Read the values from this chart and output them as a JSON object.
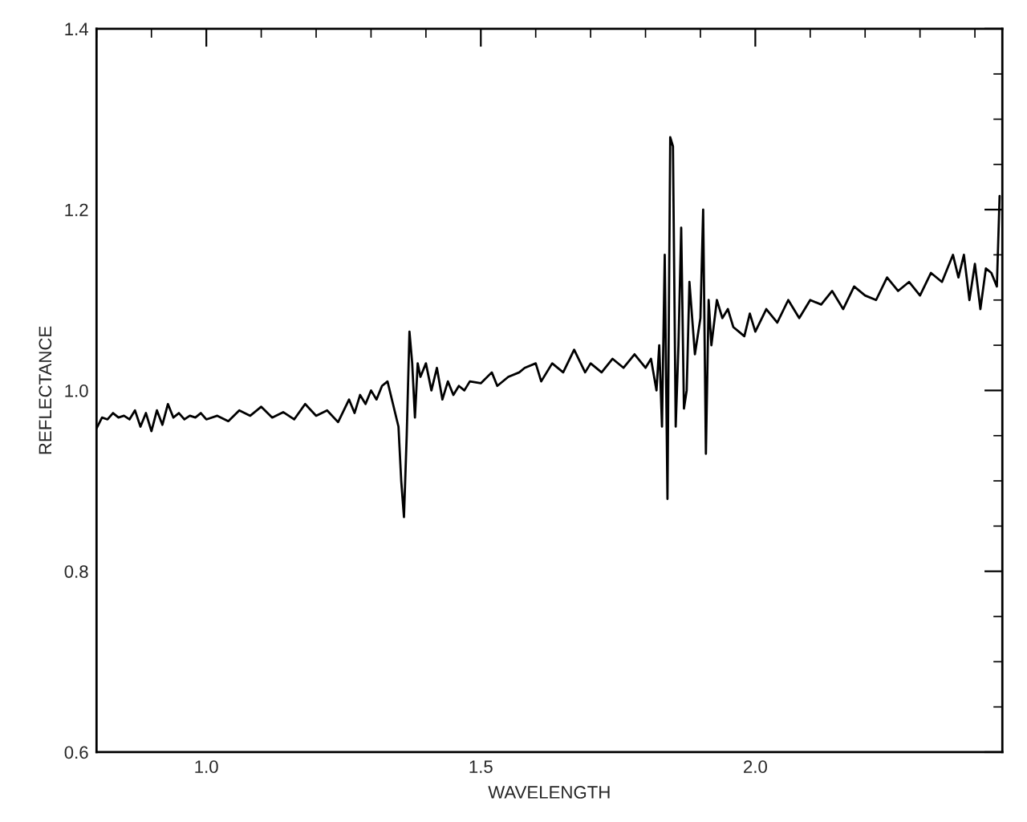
{
  "chart_data": {
    "type": "line",
    "xlabel": "WAVELENGTH",
    "ylabel": "REFLECTANCE",
    "xlim": [
      0.8,
      2.45
    ],
    "ylim": [
      0.6,
      1.4
    ],
    "xticks": [
      {
        "value": 1.0,
        "label": "1.0"
      },
      {
        "value": 1.5,
        "label": "1.5"
      },
      {
        "value": 2.0,
        "label": "2.0"
      }
    ],
    "yticks": [
      {
        "value": 0.6,
        "label": "0.6"
      },
      {
        "value": 0.8,
        "label": "0.8"
      },
      {
        "value": 1.0,
        "label": "1.0"
      },
      {
        "value": 1.2,
        "label": "1.2"
      },
      {
        "value": 1.4,
        "label": "1.4"
      }
    ],
    "grid": false,
    "marker": "none",
    "line_style": "solid",
    "series": [
      {
        "color": "#000000",
        "x": [
          0.8,
          0.81,
          0.82,
          0.83,
          0.84,
          0.85,
          0.86,
          0.87,
          0.88,
          0.89,
          0.9,
          0.91,
          0.92,
          0.93,
          0.94,
          0.95,
          0.96,
          0.97,
          0.98,
          0.99,
          1.0,
          1.02,
          1.04,
          1.06,
          1.08,
          1.1,
          1.12,
          1.14,
          1.16,
          1.18,
          1.2,
          1.22,
          1.24,
          1.26,
          1.27,
          1.28,
          1.29,
          1.3,
          1.31,
          1.32,
          1.33,
          1.34,
          1.35,
          1.355,
          1.36,
          1.365,
          1.37,
          1.375,
          1.38,
          1.385,
          1.39,
          1.4,
          1.41,
          1.42,
          1.43,
          1.44,
          1.45,
          1.46,
          1.47,
          1.48,
          1.5,
          1.52,
          1.53,
          1.55,
          1.57,
          1.58,
          1.6,
          1.61,
          1.63,
          1.65,
          1.67,
          1.69,
          1.7,
          1.72,
          1.74,
          1.76,
          1.78,
          1.8,
          1.81,
          1.82,
          1.825,
          1.83,
          1.835,
          1.84,
          1.845,
          1.85,
          1.855,
          1.86,
          1.865,
          1.87,
          1.875,
          1.88,
          1.89,
          1.9,
          1.905,
          1.91,
          1.915,
          1.92,
          1.93,
          1.94,
          1.95,
          1.96,
          1.97,
          1.98,
          1.99,
          2.0,
          2.02,
          2.04,
          2.06,
          2.08,
          2.1,
          2.12,
          2.14,
          2.16,
          2.18,
          2.2,
          2.22,
          2.24,
          2.26,
          2.28,
          2.3,
          2.32,
          2.34,
          2.36,
          2.37,
          2.38,
          2.39,
          2.4,
          2.41,
          2.42,
          2.43,
          2.44,
          2.445
        ],
        "values": [
          0.958,
          0.97,
          0.968,
          0.975,
          0.97,
          0.972,
          0.968,
          0.978,
          0.96,
          0.975,
          0.955,
          0.978,
          0.962,
          0.985,
          0.97,
          0.975,
          0.968,
          0.972,
          0.97,
          0.975,
          0.968,
          0.972,
          0.966,
          0.978,
          0.972,
          0.982,
          0.97,
          0.976,
          0.968,
          0.985,
          0.972,
          0.978,
          0.965,
          0.99,
          0.975,
          0.995,
          0.985,
          1.0,
          0.99,
          1.005,
          1.01,
          0.985,
          0.96,
          0.9,
          0.86,
          0.95,
          1.065,
          1.03,
          0.97,
          1.03,
          1.015,
          1.03,
          1.0,
          1.025,
          0.99,
          1.01,
          0.995,
          1.005,
          1.0,
          1.01,
          1.008,
          1.02,
          1.005,
          1.015,
          1.02,
          1.025,
          1.03,
          1.01,
          1.03,
          1.02,
          1.045,
          1.02,
          1.03,
          1.02,
          1.035,
          1.025,
          1.04,
          1.025,
          1.035,
          1.0,
          1.05,
          0.96,
          1.15,
          0.88,
          1.28,
          1.27,
          0.96,
          1.05,
          1.18,
          0.98,
          1.0,
          1.12,
          1.04,
          1.08,
          1.2,
          0.93,
          1.1,
          1.05,
          1.1,
          1.08,
          1.09,
          1.07,
          1.065,
          1.06,
          1.085,
          1.065,
          1.09,
          1.075,
          1.1,
          1.08,
          1.1,
          1.095,
          1.11,
          1.09,
          1.115,
          1.105,
          1.1,
          1.125,
          1.11,
          1.12,
          1.105,
          1.13,
          1.12,
          1.15,
          1.125,
          1.15,
          1.1,
          1.14,
          1.09,
          1.135,
          1.13,
          1.115,
          1.215
        ]
      }
    ]
  }
}
